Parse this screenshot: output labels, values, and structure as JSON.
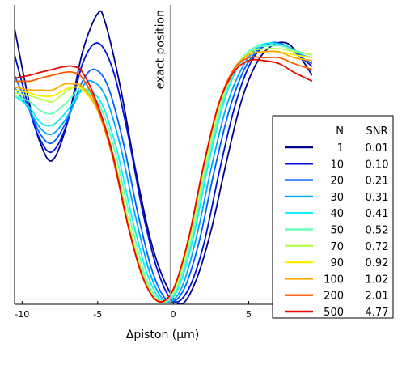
{
  "chart_data": {
    "type": "line",
    "title": "",
    "xlabel": "Δpiston (µm)",
    "ylabel": "",
    "xlim": [
      -10.5,
      9.2
    ],
    "ylim": [
      0,
      1.02
    ],
    "x_ticks": [
      -10,
      -5,
      0,
      5
    ],
    "y_ticks": [],
    "grid": false,
    "vline": {
      "x": -0.2,
      "label": "exact position",
      "color": "#a0a0a0"
    },
    "legend": {
      "position": "right",
      "headers": [
        "N",
        "SNR"
      ],
      "entries": [
        {
          "N": "1",
          "SNR": "0.01",
          "color": "#00008f"
        },
        {
          "N": "10",
          "SNR": "0.10",
          "color": "#0011d8"
        },
        {
          "N": "20",
          "SNR": "0.21",
          "color": "#0060ff"
        },
        {
          "N": "30",
          "SNR": "0.31",
          "color": "#00a8ff"
        },
        {
          "N": "40",
          "SNR": "0.41",
          "color": "#10f0f8"
        },
        {
          "N": "50",
          "SNR": "0.52",
          "color": "#66ffb8"
        },
        {
          "N": "70",
          "SNR": "0.72",
          "color": "#b8ff50"
        },
        {
          "N": "90",
          "SNR": "0.92",
          "color": "#ffee00"
        },
        {
          "N": "100",
          "SNR": "1.02",
          "color": "#ffaa00"
        },
        {
          "N": "200",
          "SNR": "2.01",
          "color": "#ff5a00"
        },
        {
          "N": "500",
          "SNR": "4.77",
          "color": "#e80a00"
        }
      ]
    },
    "series": [
      {
        "name": "1",
        "color": "#00008f",
        "points": [
          [
            -10.5,
            0.94
          ],
          [
            -9.5,
            0.68
          ],
          [
            -8.8,
            0.55
          ],
          [
            -8,
            0.49
          ],
          [
            -7,
            0.62
          ],
          [
            -6,
            0.86
          ],
          [
            -5,
            0.99
          ],
          [
            -4.5,
            0.96
          ],
          [
            -3.5,
            0.74
          ],
          [
            -2.5,
            0.46
          ],
          [
            -1.5,
            0.22
          ],
          [
            -0.5,
            0.07
          ],
          [
            0.5,
            0.0
          ],
          [
            1.5,
            0.08
          ],
          [
            2.5,
            0.25
          ],
          [
            3.5,
            0.48
          ],
          [
            4.5,
            0.69
          ],
          [
            5.5,
            0.82
          ],
          [
            6.5,
            0.88
          ],
          [
            7.5,
            0.89
          ],
          [
            8.3,
            0.85
          ],
          [
            9.2,
            0.78
          ]
        ]
      },
      {
        "name": "10",
        "color": "#0011d8",
        "points": [
          [
            -10.5,
            0.85
          ],
          [
            -9.5,
            0.66
          ],
          [
            -8.8,
            0.56
          ],
          [
            -8,
            0.52
          ],
          [
            -7,
            0.62
          ],
          [
            -6,
            0.82
          ],
          [
            -5,
            0.89
          ],
          [
            -4,
            0.8
          ],
          [
            -3,
            0.58
          ],
          [
            -2,
            0.31
          ],
          [
            -1,
            0.11
          ],
          [
            0,
            0.01
          ],
          [
            1,
            0.05
          ],
          [
            2,
            0.2
          ],
          [
            3,
            0.44
          ],
          [
            4,
            0.66
          ],
          [
            5,
            0.81
          ],
          [
            6,
            0.88
          ],
          [
            7,
            0.89
          ],
          [
            8,
            0.86
          ],
          [
            9.2,
            0.81
          ]
        ]
      },
      {
        "name": "20",
        "color": "#0060ff",
        "points": [
          [
            -10.5,
            0.78
          ],
          [
            -9.5,
            0.66
          ],
          [
            -8.8,
            0.58
          ],
          [
            -8,
            0.55
          ],
          [
            -7,
            0.63
          ],
          [
            -6,
            0.76
          ],
          [
            -5.2,
            0.8
          ],
          [
            -4.3,
            0.74
          ],
          [
            -3.3,
            0.55
          ],
          [
            -2.3,
            0.3
          ],
          [
            -1.3,
            0.1
          ],
          [
            -0.3,
            0.01
          ],
          [
            0.7,
            0.05
          ],
          [
            1.7,
            0.21
          ],
          [
            2.7,
            0.45
          ],
          [
            3.7,
            0.66
          ],
          [
            4.7,
            0.8
          ],
          [
            5.7,
            0.87
          ],
          [
            6.7,
            0.89
          ],
          [
            7.7,
            0.87
          ],
          [
            8.5,
            0.84
          ],
          [
            9.2,
            0.82
          ]
        ]
      },
      {
        "name": "30",
        "color": "#00a8ff",
        "points": [
          [
            -10.5,
            0.74
          ],
          [
            -9.5,
            0.66
          ],
          [
            -8.8,
            0.6
          ],
          [
            -8,
            0.58
          ],
          [
            -7,
            0.64
          ],
          [
            -6,
            0.74
          ],
          [
            -5.4,
            0.76
          ],
          [
            -4.5,
            0.71
          ],
          [
            -3.5,
            0.54
          ],
          [
            -2.5,
            0.3
          ],
          [
            -1.5,
            0.1
          ],
          [
            -0.5,
            0.01
          ],
          [
            0.5,
            0.05
          ],
          [
            1.5,
            0.22
          ],
          [
            2.5,
            0.46
          ],
          [
            3.5,
            0.67
          ],
          [
            4.5,
            0.8
          ],
          [
            5.5,
            0.87
          ],
          [
            6.5,
            0.89
          ],
          [
            7.5,
            0.88
          ],
          [
            8.5,
            0.85
          ],
          [
            9.2,
            0.84
          ]
        ]
      },
      {
        "name": "40",
        "color": "#10f0f8",
        "points": [
          [
            -10.5,
            0.71
          ],
          [
            -9.5,
            0.67
          ],
          [
            -8.8,
            0.62
          ],
          [
            -8,
            0.61
          ],
          [
            -7,
            0.66
          ],
          [
            -6.2,
            0.72
          ],
          [
            -5.6,
            0.73
          ],
          [
            -4.7,
            0.68
          ],
          [
            -3.7,
            0.52
          ],
          [
            -2.7,
            0.29
          ],
          [
            -1.7,
            0.1
          ],
          [
            -0.7,
            0.01
          ],
          [
            0.3,
            0.05
          ],
          [
            1.3,
            0.22
          ],
          [
            2.3,
            0.47
          ],
          [
            3.3,
            0.68
          ],
          [
            4.3,
            0.81
          ],
          [
            5.3,
            0.87
          ],
          [
            6.3,
            0.89
          ],
          [
            7.3,
            0.88
          ],
          [
            8.3,
            0.86
          ],
          [
            9.2,
            0.85
          ]
        ]
      },
      {
        "name": "50",
        "color": "#66ffb8",
        "points": [
          [
            -10.5,
            0.71
          ],
          [
            -9.5,
            0.69
          ],
          [
            -8.8,
            0.66
          ],
          [
            -8,
            0.65
          ],
          [
            -7,
            0.69
          ],
          [
            -6.3,
            0.73
          ],
          [
            -5.8,
            0.73
          ],
          [
            -4.8,
            0.67
          ],
          [
            -3.8,
            0.51
          ],
          [
            -2.8,
            0.28
          ],
          [
            -1.8,
            0.09
          ],
          [
            -0.8,
            0.01
          ],
          [
            0.2,
            0.05
          ],
          [
            1.2,
            0.22
          ],
          [
            2.2,
            0.47
          ],
          [
            3.2,
            0.68
          ],
          [
            4.2,
            0.81
          ],
          [
            5.2,
            0.87
          ],
          [
            6.2,
            0.88
          ],
          [
            7.2,
            0.88
          ],
          [
            8.2,
            0.86
          ],
          [
            9.2,
            0.85
          ]
        ]
      },
      {
        "name": "70",
        "color": "#b8ff50",
        "points": [
          [
            -10.5,
            0.72
          ],
          [
            -9.5,
            0.71
          ],
          [
            -8.8,
            0.7
          ],
          [
            -8,
            0.69
          ],
          [
            -7.2,
            0.72
          ],
          [
            -6.5,
            0.74
          ],
          [
            -5.9,
            0.73
          ],
          [
            -4.9,
            0.66
          ],
          [
            -3.9,
            0.5
          ],
          [
            -2.9,
            0.27
          ],
          [
            -1.9,
            0.09
          ],
          [
            -0.9,
            0.01
          ],
          [
            0.1,
            0.05
          ],
          [
            1.1,
            0.22
          ],
          [
            2.1,
            0.47
          ],
          [
            3.1,
            0.68
          ],
          [
            4.1,
            0.8
          ],
          [
            5.1,
            0.86
          ],
          [
            6.1,
            0.87
          ],
          [
            7.1,
            0.87
          ],
          [
            8.1,
            0.86
          ],
          [
            9.2,
            0.85
          ]
        ]
      },
      {
        "name": "90",
        "color": "#ffee00",
        "points": [
          [
            -10.5,
            0.73
          ],
          [
            -9.5,
            0.72
          ],
          [
            -8.8,
            0.71
          ],
          [
            -8,
            0.71
          ],
          [
            -7.2,
            0.73
          ],
          [
            -6.6,
            0.74
          ],
          [
            -6,
            0.73
          ],
          [
            -5,
            0.66
          ],
          [
            -4,
            0.5
          ],
          [
            -3,
            0.27
          ],
          [
            -2,
            0.09
          ],
          [
            -1,
            0.01
          ],
          [
            0,
            0.05
          ],
          [
            1,
            0.22
          ],
          [
            2,
            0.47
          ],
          [
            3,
            0.68
          ],
          [
            4,
            0.8
          ],
          [
            5,
            0.85
          ],
          [
            6,
            0.86
          ],
          [
            7,
            0.86
          ],
          [
            8,
            0.85
          ],
          [
            9.2,
            0.84
          ]
        ]
      },
      {
        "name": "100",
        "color": "#ffaa00",
        "points": [
          [
            -10.5,
            0.74
          ],
          [
            -9.5,
            0.73
          ],
          [
            -8.8,
            0.73
          ],
          [
            -8,
            0.73
          ],
          [
            -7.2,
            0.75
          ],
          [
            -6.6,
            0.75
          ],
          [
            -6,
            0.74
          ],
          [
            -5,
            0.66
          ],
          [
            -4,
            0.5
          ],
          [
            -3,
            0.27
          ],
          [
            -2,
            0.09
          ],
          [
            -1,
            0.01
          ],
          [
            0,
            0.05
          ],
          [
            1,
            0.22
          ],
          [
            2,
            0.47
          ],
          [
            3,
            0.68
          ],
          [
            4,
            0.8
          ],
          [
            5,
            0.85
          ],
          [
            6,
            0.86
          ],
          [
            7,
            0.86
          ],
          [
            8,
            0.84
          ],
          [
            9.2,
            0.83
          ]
        ]
      },
      {
        "name": "200",
        "color": "#ff5a00",
        "points": [
          [
            -10.5,
            0.76
          ],
          [
            -9.5,
            0.76
          ],
          [
            -8.8,
            0.77
          ],
          [
            -8,
            0.78
          ],
          [
            -7.2,
            0.79
          ],
          [
            -6.6,
            0.79
          ],
          [
            -6,
            0.77
          ],
          [
            -5,
            0.67
          ],
          [
            -4,
            0.5
          ],
          [
            -3,
            0.27
          ],
          [
            -2,
            0.09
          ],
          [
            -1,
            0.01
          ],
          [
            0,
            0.05
          ],
          [
            1,
            0.22
          ],
          [
            2,
            0.47
          ],
          [
            3,
            0.68
          ],
          [
            4,
            0.8
          ],
          [
            5,
            0.84
          ],
          [
            6,
            0.84
          ],
          [
            7,
            0.84
          ],
          [
            8,
            0.82
          ],
          [
            9.2,
            0.8
          ]
        ]
      },
      {
        "name": "500",
        "color": "#e80a00",
        "points": [
          [
            -10.5,
            0.77
          ],
          [
            -9.5,
            0.78
          ],
          [
            -8.8,
            0.79
          ],
          [
            -8,
            0.8
          ],
          [
            -7.2,
            0.81
          ],
          [
            -6.6,
            0.81
          ],
          [
            -6,
            0.79
          ],
          [
            -5,
            0.68
          ],
          [
            -4,
            0.51
          ],
          [
            -3,
            0.27
          ],
          [
            -2,
            0.09
          ],
          [
            -1,
            0.01
          ],
          [
            0,
            0.05
          ],
          [
            1,
            0.22
          ],
          [
            2,
            0.47
          ],
          [
            3,
            0.68
          ],
          [
            4,
            0.79
          ],
          [
            5,
            0.83
          ],
          [
            6,
            0.83
          ],
          [
            7,
            0.82
          ],
          [
            8,
            0.79
          ],
          [
            9.2,
            0.76
          ]
        ]
      }
    ]
  }
}
